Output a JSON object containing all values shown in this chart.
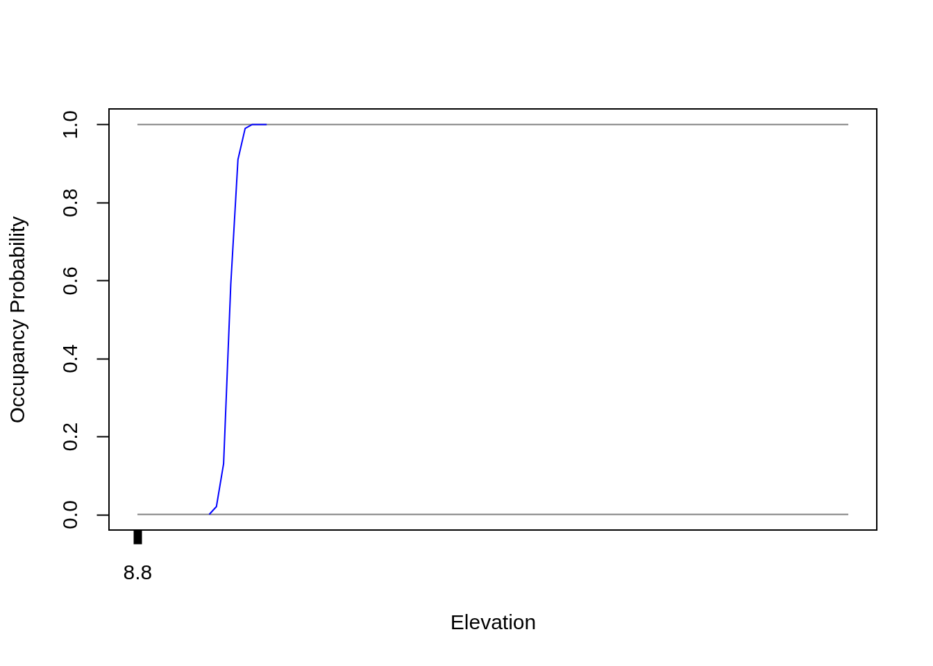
{
  "chart_data": {
    "type": "line",
    "xlabel": "Elevation",
    "ylabel": "Occupancy Probability",
    "categories": [
      "8.8",
      null,
      null,
      null,
      null,
      null,
      null,
      null,
      null,
      null,
      null,
      null,
      null,
      null,
      null,
      null,
      null,
      null,
      null,
      null,
      null,
      null,
      null,
      null,
      null,
      null,
      null,
      null,
      null,
      null,
      null,
      null,
      null,
      null,
      null,
      null,
      null,
      null,
      null,
      null,
      null,
      null,
      null,
      null,
      null,
      null,
      null,
      null,
      null,
      null,
      null,
      null,
      null,
      null,
      null,
      null,
      null,
      null,
      null,
      null,
      null,
      null,
      null,
      null,
      null,
      null,
      null,
      null,
      null,
      null,
      null,
      null,
      null,
      null,
      null,
      null,
      null,
      null,
      null,
      null,
      null,
      null,
      null,
      null,
      null,
      null,
      null,
      null,
      null,
      null,
      null,
      null,
      null,
      null,
      null,
      null,
      null,
      null,
      null,
      null
    ],
    "series": [
      {
        "color": "#808080",
        "values": [
          0,
          0,
          0,
          0,
          0,
          0,
          0,
          0,
          0,
          0,
          0,
          0,
          0,
          0,
          0,
          0,
          0,
          0,
          0,
          0,
          0,
          0,
          0,
          0,
          0,
          0,
          0,
          0,
          0,
          0,
          0,
          0,
          0,
          0,
          0,
          0,
          0,
          0,
          0,
          0,
          0,
          0,
          0,
          0,
          0,
          0,
          0,
          0,
          0,
          0,
          0,
          0,
          0,
          0,
          0,
          0,
          0,
          0,
          0,
          0,
          0,
          0,
          0,
          0,
          0,
          0,
          0,
          0,
          0,
          0,
          0,
          0,
          0,
          0,
          0,
          0,
          0,
          0,
          0,
          0,
          0,
          0,
          0,
          0,
          0,
          0,
          0,
          0,
          0,
          0,
          0,
          0,
          0,
          0,
          0,
          0,
          0,
          0,
          0,
          0
        ]
      },
      {
        "color": "#808080",
        "values": [
          1,
          1,
          1,
          1,
          1,
          1,
          1,
          1,
          1,
          1,
          1,
          1,
          1,
          1,
          1,
          1,
          1,
          1,
          1,
          1,
          1,
          1,
          1,
          1,
          1,
          1,
          1,
          1,
          1,
          1,
          1,
          1,
          1,
          1,
          1,
          1,
          1,
          1,
          1,
          1,
          1,
          1,
          1,
          1,
          1,
          1,
          1,
          1,
          1,
          1,
          1,
          1,
          1,
          1,
          1,
          1,
          1,
          1,
          1,
          1,
          1,
          1,
          1,
          1,
          1,
          1,
          1,
          1,
          1,
          1,
          1,
          1,
          1,
          1,
          1,
          1,
          1,
          1,
          1,
          1,
          1,
          1,
          1,
          1,
          1,
          1,
          1,
          1,
          1,
          1,
          1,
          1,
          1,
          1,
          1,
          1,
          1,
          1,
          1,
          1
        ]
      },
      {
        "color": "#0000ff",
        "values": [
          null,
          null,
          null,
          null,
          null,
          null,
          null,
          null,
          null,
          null,
          0,
          0.02,
          0.13,
          0.59,
          0.91,
          0.99,
          1,
          1,
          1,
          null,
          null,
          null,
          null,
          null,
          null,
          null,
          null,
          null,
          null,
          null,
          null,
          null,
          null,
          null,
          null,
          null,
          null,
          null,
          null,
          null,
          null,
          null,
          null,
          null,
          null,
          null,
          null,
          null,
          null,
          null,
          null,
          null,
          null,
          null,
          null,
          null,
          null,
          null,
          null,
          null,
          null,
          null,
          null,
          null,
          null,
          null,
          null,
          null,
          null,
          null,
          null,
          null,
          null,
          null,
          null,
          null,
          null,
          null,
          null,
          null,
          null,
          null,
          null,
          null,
          null,
          null,
          null,
          null,
          null,
          null,
          null,
          null,
          null,
          null,
          null,
          null,
          null,
          null,
          null,
          null
        ]
      }
    ],
    "ylim": [
      -0.04,
      1.04
    ],
    "yticks": [
      {
        "value": 0,
        "label": "0.0"
      },
      0.2,
      0.4,
      0.6,
      0.8,
      {
        "value": 1,
        "label": "1.0"
      }
    ]
  }
}
